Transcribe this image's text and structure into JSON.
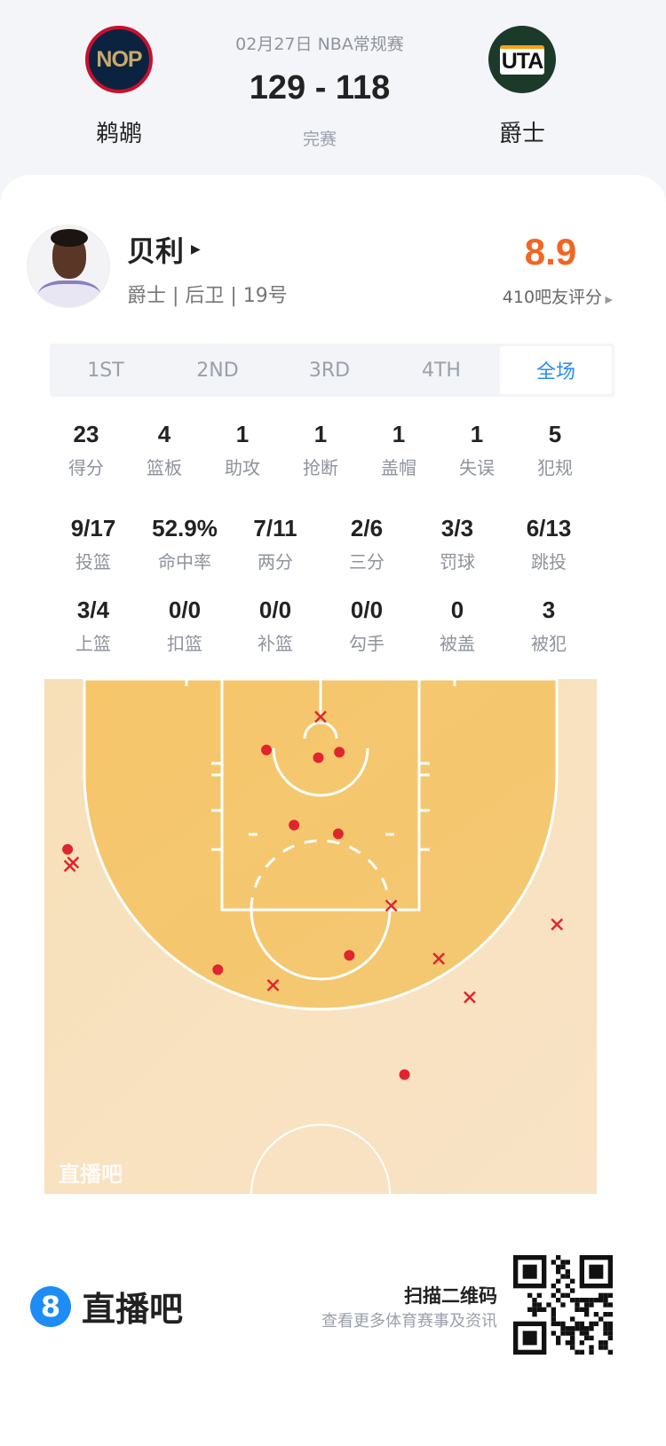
{
  "match": {
    "date_league": "02月27日 NBA常规赛",
    "score": "129 - 118",
    "status": "完赛",
    "home": {
      "abbr": "NOP",
      "name": "鹈鹕",
      "color": "#0c2340",
      "ring": "#c8102e",
      "text": "#c9a96b"
    },
    "away": {
      "abbr": "UTA",
      "name": "爵士",
      "color": "#1c3a2a",
      "text": "#111111",
      "accent": "#f9a01b"
    }
  },
  "player": {
    "name": "贝利",
    "meta": "爵士 | 后卫 | 19号",
    "rating": "8.9",
    "rating_count": "410吧友评分",
    "rating_color": "#f26522"
  },
  "tabs": [
    {
      "label": "1ST",
      "active": false
    },
    {
      "label": "2ND",
      "active": false
    },
    {
      "label": "3RD",
      "active": false
    },
    {
      "label": "4TH",
      "active": false
    },
    {
      "label": "全场",
      "active": true
    }
  ],
  "stats_row1": [
    {
      "value": "23",
      "label": "得分"
    },
    {
      "value": "4",
      "label": "篮板"
    },
    {
      "value": "1",
      "label": "助攻"
    },
    {
      "value": "1",
      "label": "抢断"
    },
    {
      "value": "1",
      "label": "盖帽"
    },
    {
      "value": "1",
      "label": "失误"
    },
    {
      "value": "5",
      "label": "犯规"
    }
  ],
  "stats_row2": [
    {
      "value": "9/17",
      "label": "投篮"
    },
    {
      "value": "52.9%",
      "label": "命中率"
    },
    {
      "value": "7/11",
      "label": "两分"
    },
    {
      "value": "2/6",
      "label": "三分"
    },
    {
      "value": "3/3",
      "label": "罚球"
    },
    {
      "value": "6/13",
      "label": "跳投"
    }
  ],
  "stats_row3": [
    {
      "value": "3/4",
      "label": "上篮"
    },
    {
      "value": "0/0",
      "label": "扣篮"
    },
    {
      "value": "0/0",
      "label": "补篮"
    },
    {
      "value": "0/0",
      "label": "勾手"
    },
    {
      "value": "0",
      "label": "被盖"
    },
    {
      "value": "3",
      "label": "被犯"
    }
  ],
  "shot_chart": {
    "watermark": "直播吧",
    "units": "feet from basket",
    "made_color": "#e0252f",
    "shots": [
      {
        "made": true,
        "x": -4.9,
        "y": 2.4
      },
      {
        "made": true,
        "x": -0.2,
        "y": 3.1
      },
      {
        "made": true,
        "x": 1.7,
        "y": 2.6
      },
      {
        "made": true,
        "x": -2.4,
        "y": 9.2
      },
      {
        "made": true,
        "x": 1.6,
        "y": 10.0
      },
      {
        "made": true,
        "x": -22.9,
        "y": 11.4
      },
      {
        "made": true,
        "x": -9.3,
        "y": 22.3
      },
      {
        "made": true,
        "x": 2.6,
        "y": 21.0
      },
      {
        "made": true,
        "x": 7.6,
        "y": 31.8
      },
      {
        "made": false,
        "x": 0.0,
        "y": -0.6
      },
      {
        "made": false,
        "x": -22.7,
        "y": 12.9
      },
      {
        "made": false,
        "x": -22.4,
        "y": 12.6
      },
      {
        "made": false,
        "x": 6.4,
        "y": 16.5
      },
      {
        "made": false,
        "x": 21.4,
        "y": 18.2
      },
      {
        "made": false,
        "x": 10.7,
        "y": 21.3
      },
      {
        "made": false,
        "x": -4.3,
        "y": 23.7
      },
      {
        "made": false,
        "x": 13.5,
        "y": 24.8
      }
    ]
  },
  "footer": {
    "brand_badge": "8",
    "brand_name": "直播吧",
    "qr_title": "扫描二维码",
    "qr_sub": "查看更多体育赛事及资讯"
  }
}
